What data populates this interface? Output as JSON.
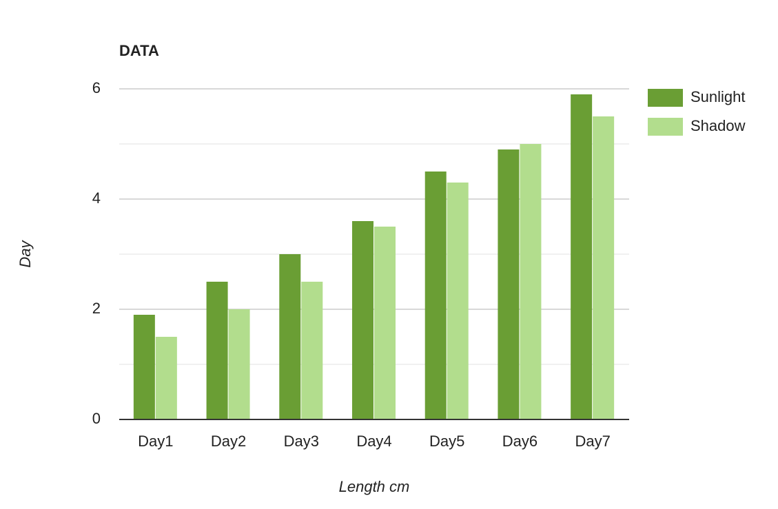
{
  "chart_data": {
    "type": "bar",
    "title": "DATA",
    "x_label": "Length cm",
    "y_label": "Day",
    "categories": [
      "Day1",
      "Day2",
      "Day3",
      "Day4",
      "Day5",
      "Day6",
      "Day7"
    ],
    "series": [
      {
        "name": "Sunlight",
        "color": "#6a9e34",
        "values": [
          1.9,
          2.5,
          3.0,
          3.6,
          4.5,
          4.9,
          5.9
        ]
      },
      {
        "name": "Shadow",
        "color": "#b2dd8d",
        "values": [
          1.5,
          2.0,
          2.5,
          3.5,
          4.3,
          5.0,
          5.5
        ]
      }
    ],
    "ylim": [
      0,
      6
    ],
    "yticks": [
      0,
      2,
      4,
      6
    ],
    "minor_yticks": [
      1,
      3,
      5
    ],
    "grid": true,
    "legend": "right"
  }
}
